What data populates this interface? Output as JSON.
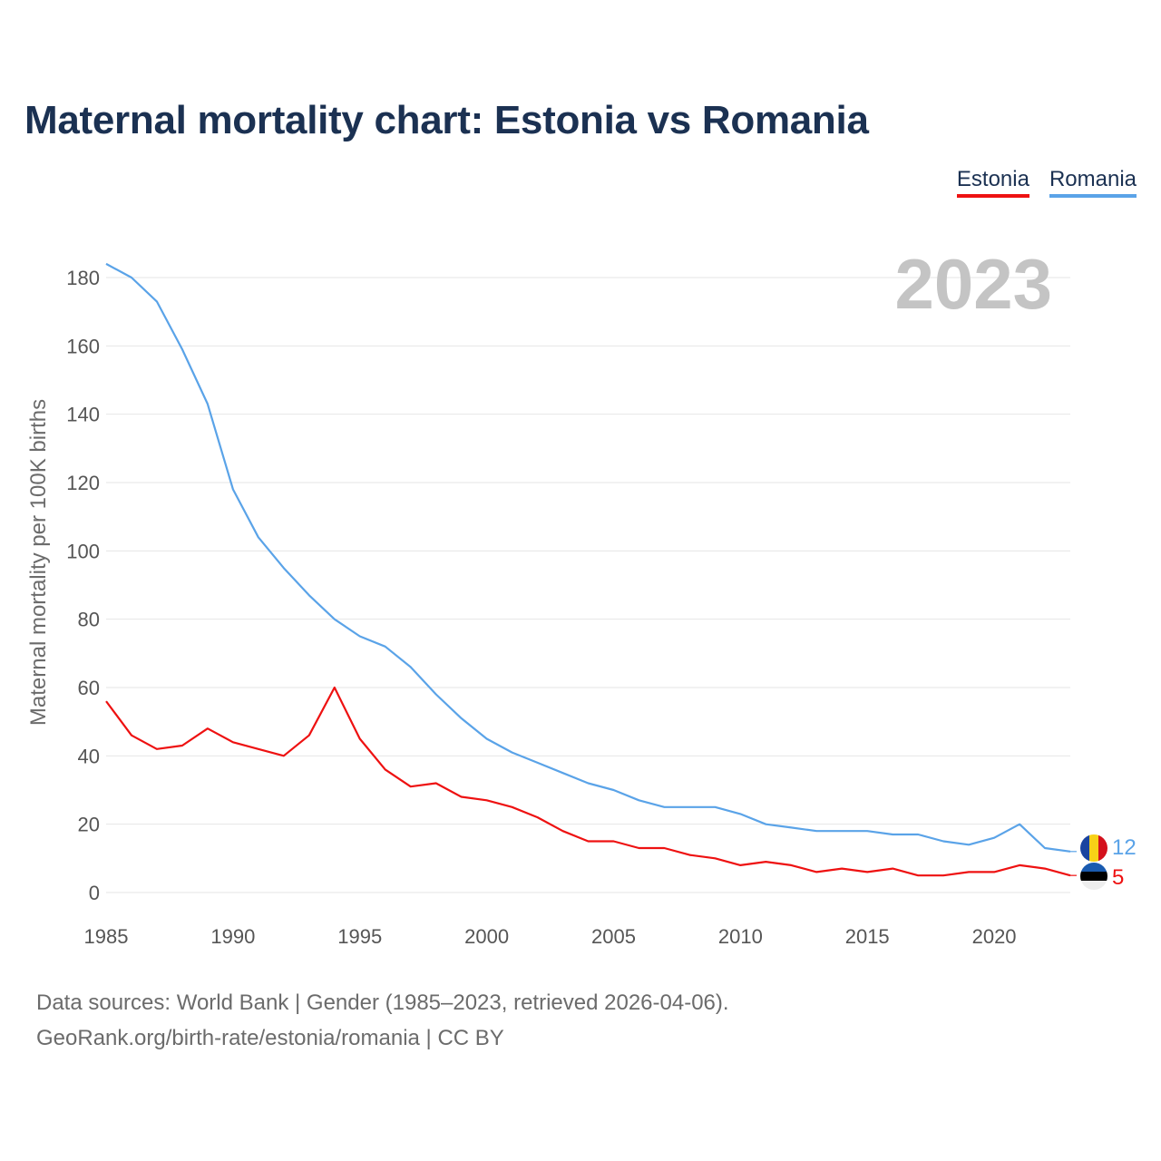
{
  "title": "Maternal mortality chart: Estonia vs Romania",
  "legend": [
    {
      "label": "Estonia",
      "color": "#ee1111"
    },
    {
      "label": "Romania",
      "color": "#5aa3e8"
    }
  ],
  "year_label": "2023",
  "chart_data": {
    "type": "line",
    "title": "Maternal mortality chart: Estonia vs Romania",
    "xlabel": "",
    "ylabel": "Maternal mortality per 100K births",
    "xlim": [
      1985,
      2023
    ],
    "ylim": [
      0,
      180
    ],
    "yticks": [
      0,
      20,
      40,
      60,
      80,
      100,
      120,
      140,
      160,
      180
    ],
    "xticks": [
      1985,
      1990,
      1995,
      2000,
      2005,
      2010,
      2015,
      2020
    ],
    "grid": true,
    "legend_position": "top-right",
    "x": [
      1985,
      1986,
      1987,
      1988,
      1989,
      1990,
      1991,
      1992,
      1993,
      1994,
      1995,
      1996,
      1997,
      1998,
      1999,
      2000,
      2001,
      2002,
      2003,
      2004,
      2005,
      2006,
      2007,
      2008,
      2009,
      2010,
      2011,
      2012,
      2013,
      2014,
      2015,
      2016,
      2017,
      2018,
      2019,
      2020,
      2021,
      2022,
      2023
    ],
    "series": [
      {
        "name": "Estonia",
        "color": "#ee1111",
        "end_label": "5",
        "values": [
          56,
          46,
          42,
          43,
          48,
          44,
          42,
          40,
          46,
          60,
          45,
          36,
          31,
          32,
          28,
          27,
          25,
          22,
          18,
          15,
          15,
          13,
          13,
          11,
          10,
          8,
          9,
          8,
          6,
          7,
          6,
          7,
          5,
          5,
          6,
          6,
          8,
          7,
          5
        ]
      },
      {
        "name": "Romania",
        "color": "#5aa3e8",
        "end_label": "12",
        "values": [
          184,
          180,
          173,
          159,
          143,
          118,
          104,
          95,
          87,
          80,
          75,
          72,
          66,
          58,
          51,
          45,
          41,
          38,
          35,
          32,
          30,
          27,
          25,
          25,
          25,
          23,
          20,
          19,
          18,
          18,
          18,
          17,
          17,
          15,
          14,
          16,
          20,
          13,
          12
        ]
      }
    ]
  },
  "footer": {
    "line1": "Data sources: World Bank | Gender (1985–2023, retrieved 2026-04-06).",
    "line2": "GeoRank.org/birth-rate/estonia/romania | CC BY"
  }
}
